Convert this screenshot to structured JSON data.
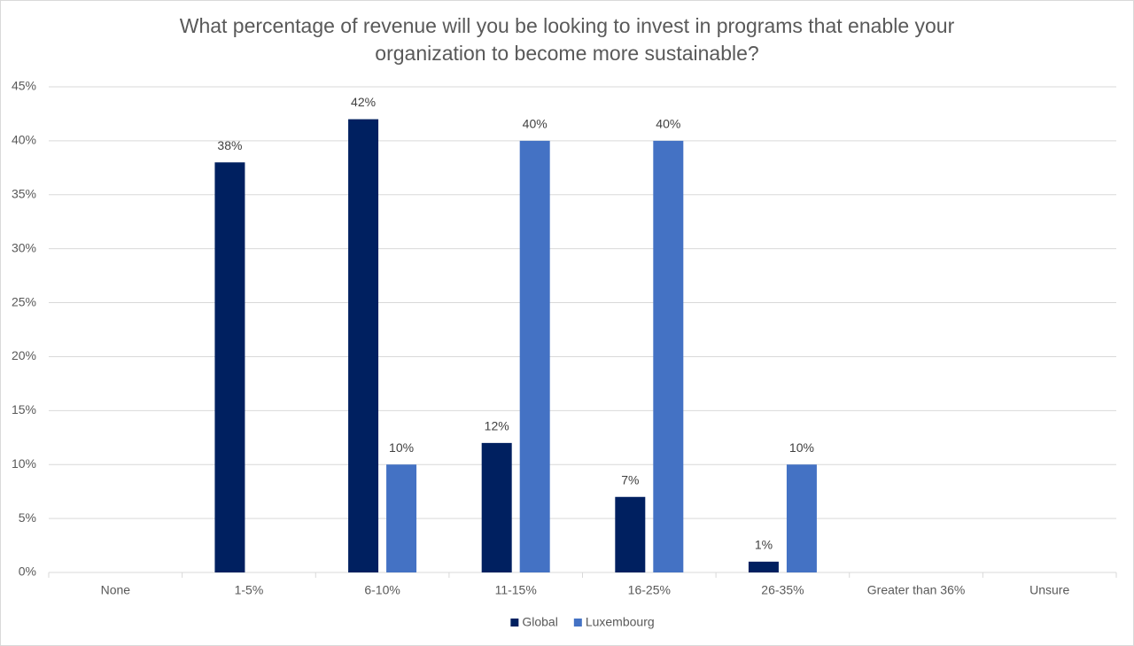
{
  "chart_data": {
    "type": "bar",
    "title": "What percentage of revenue will you be looking to invest in programs that enable your organization to become more sustainable?",
    "categories": [
      "None",
      "1-5%",
      "6-10%",
      "11-15%",
      "16-25%",
      "26-35%",
      "Greater than 36%",
      "Unsure"
    ],
    "series": [
      {
        "name": "Global",
        "color": "#002060",
        "values": [
          null,
          38,
          42,
          12,
          7,
          1,
          null,
          null
        ],
        "value_labels": [
          null,
          "38%",
          "42%",
          "12%",
          "7%",
          "1%",
          null,
          null
        ]
      },
      {
        "name": "Luxembourg",
        "color": "#4472c4",
        "values": [
          null,
          null,
          10,
          40,
          40,
          10,
          null,
          null
        ],
        "value_labels": [
          null,
          null,
          "10%",
          "40%",
          "40%",
          "10%",
          null,
          null
        ]
      }
    ],
    "ylim": [
      0,
      45
    ],
    "yticks": [
      {
        "value": 0,
        "label": "0%"
      },
      {
        "value": 5,
        "label": "5%"
      },
      {
        "value": 10,
        "label": "10%"
      },
      {
        "value": 15,
        "label": "15%"
      },
      {
        "value": 20,
        "label": "20%"
      },
      {
        "value": 25,
        "label": "25%"
      },
      {
        "value": 30,
        "label": "30%"
      },
      {
        "value": 35,
        "label": "35%"
      },
      {
        "value": 40,
        "label": "40%"
      },
      {
        "value": 45,
        "label": "45%"
      }
    ],
    "grid": true,
    "legend": "bottom"
  }
}
